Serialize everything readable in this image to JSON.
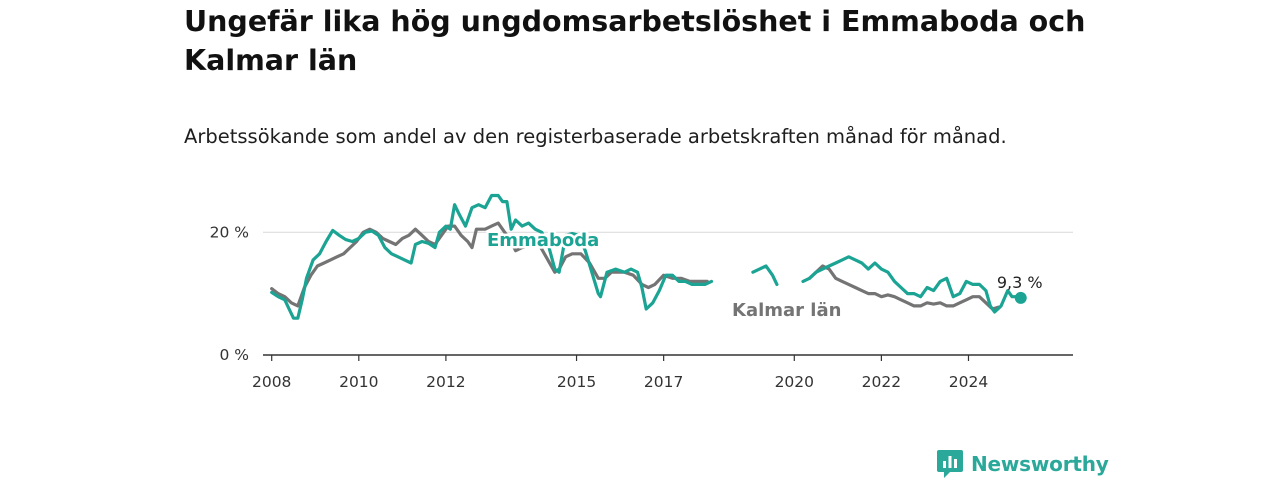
{
  "title": "Ungefär lika hög ungdomsarbetslöshet i Emmaboda och Kalmar län",
  "subtitle": "Arbetssökande som andel av den registerbaserade arbetskraften månad för månad.",
  "brand": {
    "name": "Newsworthy",
    "logo_icon": "newsworthy-bar-logo-icon"
  },
  "colors": {
    "emmaboda": "#1ba394",
    "kalmar": "#747474",
    "axis": "#333333",
    "grid": "#d9d9d9"
  },
  "chart_data": {
    "type": "line",
    "title": "Ungefär lika hög ungdomsarbetslöshet i Emmaboda och Kalmar län",
    "subtitle": "Arbetssökande som andel av den registerbaserade arbetskraften månad för månad.",
    "x_ticks": [
      "2008",
      "2010",
      "2012",
      "2015",
      "2017",
      "2020",
      "2022",
      "2024"
    ],
    "y_ticks": [
      "0 %",
      "20 %"
    ],
    "y_tick_values": [
      0,
      20
    ],
    "xlim": [
      2007.8,
      2026.4
    ],
    "ylim": [
      0,
      22
    ],
    "grid": "horizontal",
    "last_value_label": "9,3 %",
    "series": [
      {
        "name": "Emmaboda",
        "color": "#1ba394",
        "points": [
          [
            2008.0,
            10.2
          ],
          [
            2008.15,
            9.5
          ],
          [
            2008.3,
            9.0
          ],
          [
            2008.4,
            7.5
          ],
          [
            2008.5,
            6.0
          ],
          [
            2008.6,
            6.0
          ],
          [
            2008.7,
            9.0
          ],
          [
            2008.8,
            12.5
          ],
          [
            2008.95,
            15.5
          ],
          [
            2009.1,
            16.5
          ],
          [
            2009.25,
            18.5
          ],
          [
            2009.4,
            20.3
          ],
          [
            2009.55,
            19.5
          ],
          [
            2009.7,
            18.8
          ],
          [
            2009.85,
            18.5
          ],
          [
            2010.0,
            19.0
          ],
          [
            2010.15,
            20.0
          ],
          [
            2010.3,
            20.2
          ],
          [
            2010.45,
            19.5
          ],
          [
            2010.6,
            17.5
          ],
          [
            2010.75,
            16.5
          ],
          [
            2010.9,
            16.0
          ],
          [
            2011.05,
            15.5
          ],
          [
            2011.2,
            15.0
          ],
          [
            2011.3,
            18.0
          ],
          [
            2011.45,
            18.5
          ],
          [
            2011.6,
            18.2
          ],
          [
            2011.75,
            17.5
          ],
          [
            2011.85,
            20.0
          ],
          [
            2012.0,
            21.0
          ],
          [
            2012.1,
            20.5
          ],
          [
            2012.2,
            24.5
          ],
          [
            2012.3,
            23.0
          ],
          [
            2012.45,
            21.0
          ],
          [
            2012.6,
            24.0
          ],
          [
            2012.75,
            24.5
          ],
          [
            2012.9,
            24.0
          ],
          [
            2013.05,
            26.0
          ],
          [
            2013.2,
            26.0
          ],
          [
            2013.3,
            25.0
          ],
          [
            2013.4,
            25.0
          ],
          [
            2013.5,
            20.5
          ],
          [
            2013.6,
            22.0
          ],
          [
            2013.75,
            21.0
          ],
          [
            2013.9,
            21.5
          ],
          [
            2014.05,
            20.5
          ],
          [
            2014.2,
            20.0
          ],
          [
            2014.35,
            18.0
          ],
          [
            2014.5,
            14.0
          ],
          [
            2014.6,
            13.5
          ],
          [
            2014.75,
            19.5
          ],
          [
            2014.9,
            19.8
          ],
          [
            2015.05,
            19.5
          ],
          [
            2015.2,
            17.0
          ],
          [
            2015.35,
            13.5
          ],
          [
            2015.5,
            10.0
          ],
          [
            2015.55,
            9.5
          ],
          [
            2015.7,
            13.5
          ],
          [
            2015.9,
            14.0
          ],
          [
            2016.1,
            13.5
          ],
          [
            2016.25,
            14.0
          ],
          [
            2016.4,
            13.5
          ],
          [
            2016.5,
            11.0
          ],
          [
            2016.6,
            7.5
          ],
          [
            2016.75,
            8.5
          ],
          [
            2016.9,
            10.5
          ],
          [
            2017.05,
            13.0
          ],
          [
            2017.2,
            13.0
          ],
          [
            2017.35,
            12.0
          ],
          [
            2017.5,
            12.0
          ],
          [
            2017.65,
            11.5
          ],
          [
            2017.8,
            11.5
          ],
          [
            2017.95,
            11.5
          ],
          [
            2018.1,
            12.0
          ],
          null,
          [
            2019.05,
            13.5
          ],
          [
            2019.2,
            14.0
          ],
          [
            2019.35,
            14.5
          ],
          [
            2019.5,
            13.0
          ],
          [
            2019.6,
            11.5
          ],
          null,
          [
            2020.2,
            12.0
          ],
          [
            2020.35,
            12.5
          ],
          [
            2020.5,
            13.5
          ],
          [
            2020.65,
            14.0
          ],
          [
            2020.8,
            14.5
          ],
          [
            2020.95,
            15.0
          ],
          [
            2021.1,
            15.5
          ],
          [
            2021.25,
            16.0
          ],
          [
            2021.4,
            15.5
          ],
          [
            2021.55,
            15.0
          ],
          [
            2021.7,
            14.0
          ],
          [
            2021.85,
            15.0
          ],
          [
            2022.0,
            14.0
          ],
          [
            2022.15,
            13.5
          ],
          [
            2022.3,
            12.0
          ],
          [
            2022.45,
            11.0
          ],
          [
            2022.6,
            10.0
          ],
          [
            2022.75,
            10.0
          ],
          [
            2022.9,
            9.5
          ],
          [
            2023.05,
            11.0
          ],
          [
            2023.2,
            10.5
          ],
          [
            2023.35,
            12.0
          ],
          [
            2023.5,
            12.5
          ],
          [
            2023.65,
            9.5
          ],
          [
            2023.8,
            10.0
          ],
          [
            2023.95,
            12.0
          ],
          [
            2024.1,
            11.5
          ],
          [
            2024.25,
            11.5
          ],
          [
            2024.4,
            10.5
          ],
          [
            2024.5,
            8.0
          ],
          [
            2024.6,
            7.0
          ],
          [
            2024.75,
            8.0
          ],
          [
            2024.9,
            10.5
          ],
          [
            2025.0,
            9.5
          ],
          [
            2025.1,
            9.5
          ],
          [
            2025.2,
            9.3
          ]
        ]
      },
      {
        "name": "Kalmar län",
        "color": "#747474",
        "points": [
          [
            2008.0,
            10.8
          ],
          [
            2008.15,
            10.0
          ],
          [
            2008.3,
            9.5
          ],
          [
            2008.45,
            8.5
          ],
          [
            2008.6,
            8.0
          ],
          [
            2008.75,
            11.0
          ],
          [
            2008.9,
            13.0
          ],
          [
            2009.05,
            14.5
          ],
          [
            2009.2,
            15.0
          ],
          [
            2009.35,
            15.5
          ],
          [
            2009.5,
            16.0
          ],
          [
            2009.65,
            16.5
          ],
          [
            2009.8,
            17.5
          ],
          [
            2009.95,
            18.5
          ],
          [
            2010.1,
            20.0
          ],
          [
            2010.25,
            20.5
          ],
          [
            2010.4,
            20.0
          ],
          [
            2010.55,
            19.0
          ],
          [
            2010.7,
            18.5
          ],
          [
            2010.85,
            18.0
          ],
          [
            2011.0,
            19.0
          ],
          [
            2011.15,
            19.5
          ],
          [
            2011.3,
            20.5
          ],
          [
            2011.45,
            19.5
          ],
          [
            2011.6,
            18.5
          ],
          [
            2011.75,
            18.0
          ],
          [
            2011.9,
            19.5
          ],
          [
            2012.05,
            21.0
          ],
          [
            2012.2,
            21.0
          ],
          [
            2012.35,
            19.5
          ],
          [
            2012.5,
            18.5
          ],
          [
            2012.6,
            17.5
          ],
          [
            2012.7,
            20.5
          ],
          [
            2012.9,
            20.5
          ],
          [
            2013.05,
            21.0
          ],
          [
            2013.2,
            21.5
          ],
          [
            2013.35,
            20.0
          ],
          [
            2013.5,
            18.5
          ],
          [
            2013.6,
            17.0
          ],
          [
            2013.75,
            17.5
          ],
          [
            2013.9,
            18.0
          ],
          [
            2014.1,
            18.5
          ],
          [
            2014.3,
            16.0
          ],
          [
            2014.5,
            13.5
          ],
          [
            2014.6,
            14.0
          ],
          [
            2014.75,
            16.0
          ],
          [
            2014.9,
            16.5
          ],
          [
            2015.1,
            16.5
          ],
          [
            2015.3,
            15.0
          ],
          [
            2015.5,
            12.5
          ],
          [
            2015.65,
            12.5
          ],
          [
            2015.8,
            13.5
          ],
          [
            2015.95,
            13.5
          ],
          [
            2016.1,
            13.5
          ],
          [
            2016.3,
            13.0
          ],
          [
            2016.5,
            11.5
          ],
          [
            2016.65,
            11.0
          ],
          [
            2016.8,
            11.5
          ],
          [
            2017.0,
            13.0
          ],
          [
            2017.2,
            12.5
          ],
          [
            2017.4,
            12.5
          ],
          [
            2017.6,
            12.0
          ],
          [
            2017.8,
            12.0
          ],
          [
            2018.0,
            12.0
          ],
          null,
          [
            2020.35,
            12.5
          ],
          [
            2020.5,
            13.5
          ],
          [
            2020.65,
            14.5
          ],
          [
            2020.8,
            14.0
          ],
          [
            2020.95,
            12.5
          ],
          [
            2021.1,
            12.0
          ],
          [
            2021.25,
            11.5
          ],
          [
            2021.4,
            11.0
          ],
          [
            2021.55,
            10.5
          ],
          [
            2021.7,
            10.0
          ],
          [
            2021.85,
            10.0
          ],
          [
            2022.0,
            9.5
          ],
          [
            2022.15,
            9.8
          ],
          [
            2022.3,
            9.5
          ],
          [
            2022.45,
            9.0
          ],
          [
            2022.6,
            8.5
          ],
          [
            2022.75,
            8.0
          ],
          [
            2022.9,
            8.0
          ],
          [
            2023.05,
            8.5
          ],
          [
            2023.2,
            8.3
          ],
          [
            2023.35,
            8.5
          ],
          [
            2023.5,
            8.0
          ],
          [
            2023.65,
            8.0
          ],
          [
            2023.8,
            8.5
          ],
          [
            2023.95,
            9.0
          ],
          [
            2024.1,
            9.5
          ],
          [
            2024.25,
            9.5
          ],
          [
            2024.4,
            8.5
          ],
          [
            2024.55,
            7.5
          ],
          [
            2024.7,
            7.8
          ]
        ]
      }
    ]
  }
}
